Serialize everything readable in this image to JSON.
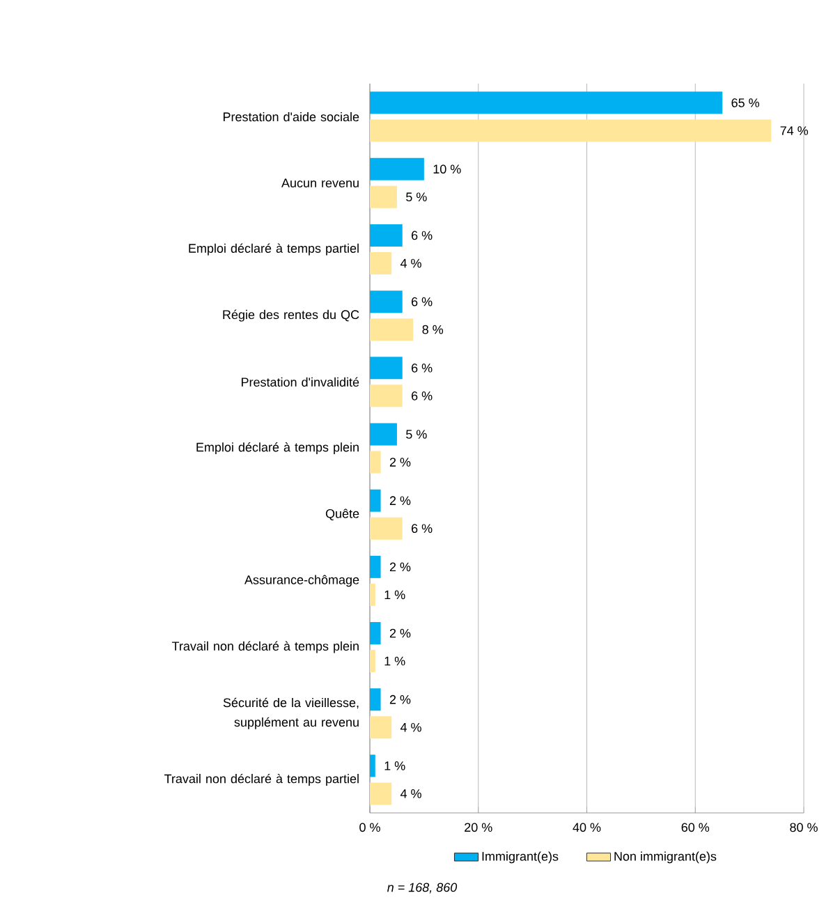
{
  "chart_data": {
    "type": "bar",
    "orientation": "horizontal",
    "categories": [
      "Prestation d'aide sociale",
      "Aucun revenu",
      "Emploi déclaré à temps partiel",
      "Régie des rentes du QC",
      "Prestation d'invalidité",
      "Emploi déclaré à temps plein",
      "Quête",
      "Assurance-chômage",
      "Travail non déclaré à temps plein",
      "Sécurité de la vieillesse, supplément au revenu",
      "Travail non déclaré à temps partiel"
    ],
    "series": [
      {
        "name": "Immigrant(e)s",
        "color": "#00b0f0",
        "values": [
          65,
          10,
          6,
          6,
          6,
          5,
          2,
          2,
          2,
          2,
          1
        ],
        "value_labels": [
          "65 %",
          "10 %",
          "6 %",
          "6 %",
          "6 %",
          "5 %",
          "2 %",
          "2 %",
          "2 %",
          "2 %",
          "1 %"
        ]
      },
      {
        "name": "Non immigrant(e)s",
        "color": "#ffe699",
        "values": [
          74,
          5,
          4,
          8,
          6,
          2,
          6,
          1,
          1,
          4,
          4
        ],
        "value_labels": [
          "74 %",
          "5 %",
          "4 %",
          "8 %",
          "6 %",
          "2 %",
          "6 %",
          "1 %",
          "1 %",
          "4 %",
          "4 %"
        ]
      }
    ],
    "xlim": [
      0,
      80
    ],
    "xticks": [
      {
        "value": 0,
        "label": "0 %"
      },
      {
        "value": 20,
        "label": "20 %"
      },
      {
        "value": 40,
        "label": "40 %"
      },
      {
        "value": 60,
        "label": "60 %"
      },
      {
        "value": 80,
        "label": "80 %"
      }
    ],
    "grid": "x",
    "legend": "bottom",
    "annotations": [
      "*n = 168, 860*"
    ]
  }
}
